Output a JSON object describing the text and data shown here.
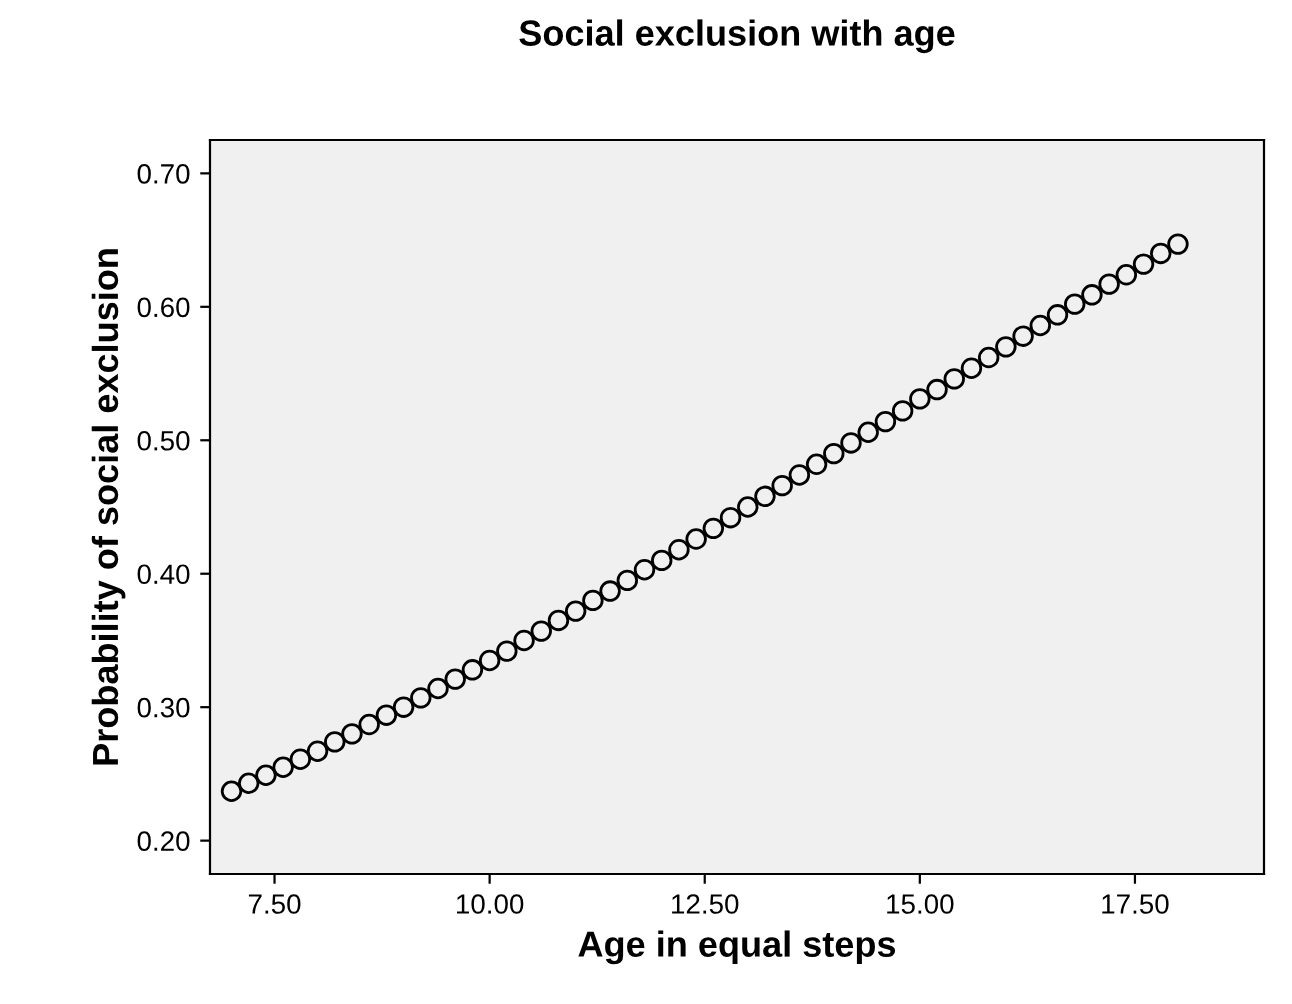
{
  "chart_data": {
    "type": "scatter",
    "title": "Social exclusion with age",
    "xlabel": "Age in equal steps",
    "ylabel": "Probability of social exclusion",
    "x": [
      7.0,
      7.2,
      7.4,
      7.6,
      7.8,
      8.0,
      8.2,
      8.4,
      8.6,
      8.8,
      9.0,
      9.2,
      9.4,
      9.6,
      9.8,
      10.0,
      10.2,
      10.4,
      10.6,
      10.8,
      11.0,
      11.2,
      11.4,
      11.6,
      11.8,
      12.0,
      12.2,
      12.4,
      12.6,
      12.8,
      13.0,
      13.2,
      13.4,
      13.6,
      13.8,
      14.0,
      14.2,
      14.4,
      14.6,
      14.8,
      15.0,
      15.2,
      15.4,
      15.6,
      15.8,
      16.0,
      16.2,
      16.4,
      16.6,
      16.8,
      17.0,
      17.2,
      17.4,
      17.6,
      17.8,
      18.0
    ],
    "values": [
      0.237,
      0.243,
      0.249,
      0.255,
      0.261,
      0.267,
      0.274,
      0.28,
      0.287,
      0.294,
      0.3,
      0.307,
      0.314,
      0.321,
      0.328,
      0.335,
      0.342,
      0.35,
      0.357,
      0.365,
      0.372,
      0.38,
      0.387,
      0.395,
      0.403,
      0.41,
      0.418,
      0.426,
      0.434,
      0.442,
      0.45,
      0.458,
      0.466,
      0.474,
      0.482,
      0.49,
      0.498,
      0.506,
      0.514,
      0.522,
      0.531,
      0.538,
      0.546,
      0.554,
      0.562,
      0.57,
      0.578,
      0.586,
      0.594,
      0.602,
      0.609,
      0.617,
      0.624,
      0.632,
      0.64,
      0.647
    ],
    "color": "#000000",
    "marker": "circle",
    "grid": false,
    "xlim": [
      6.75,
      19.0
    ],
    "xticks": [
      {
        "value": 7.5,
        "label": "7.50"
      },
      {
        "value": 10,
        "label": "10.00"
      },
      {
        "value": 12.5,
        "label": "12.50"
      },
      {
        "value": 15,
        "label": "15.00"
      },
      {
        "value": 17.5,
        "label": "17.50"
      }
    ],
    "ylim": [
      0.175,
      0.725
    ],
    "yticks": [
      {
        "value": 0.2,
        "label": "0.20"
      },
      {
        "value": 0.3,
        "label": "0.30"
      },
      {
        "value": 0.4,
        "label": "0.40"
      },
      {
        "value": 0.5,
        "label": "0.50"
      },
      {
        "value": 0.6,
        "label": "0.60"
      },
      {
        "value": 0.7,
        "label": "0.70"
      }
    ]
  }
}
